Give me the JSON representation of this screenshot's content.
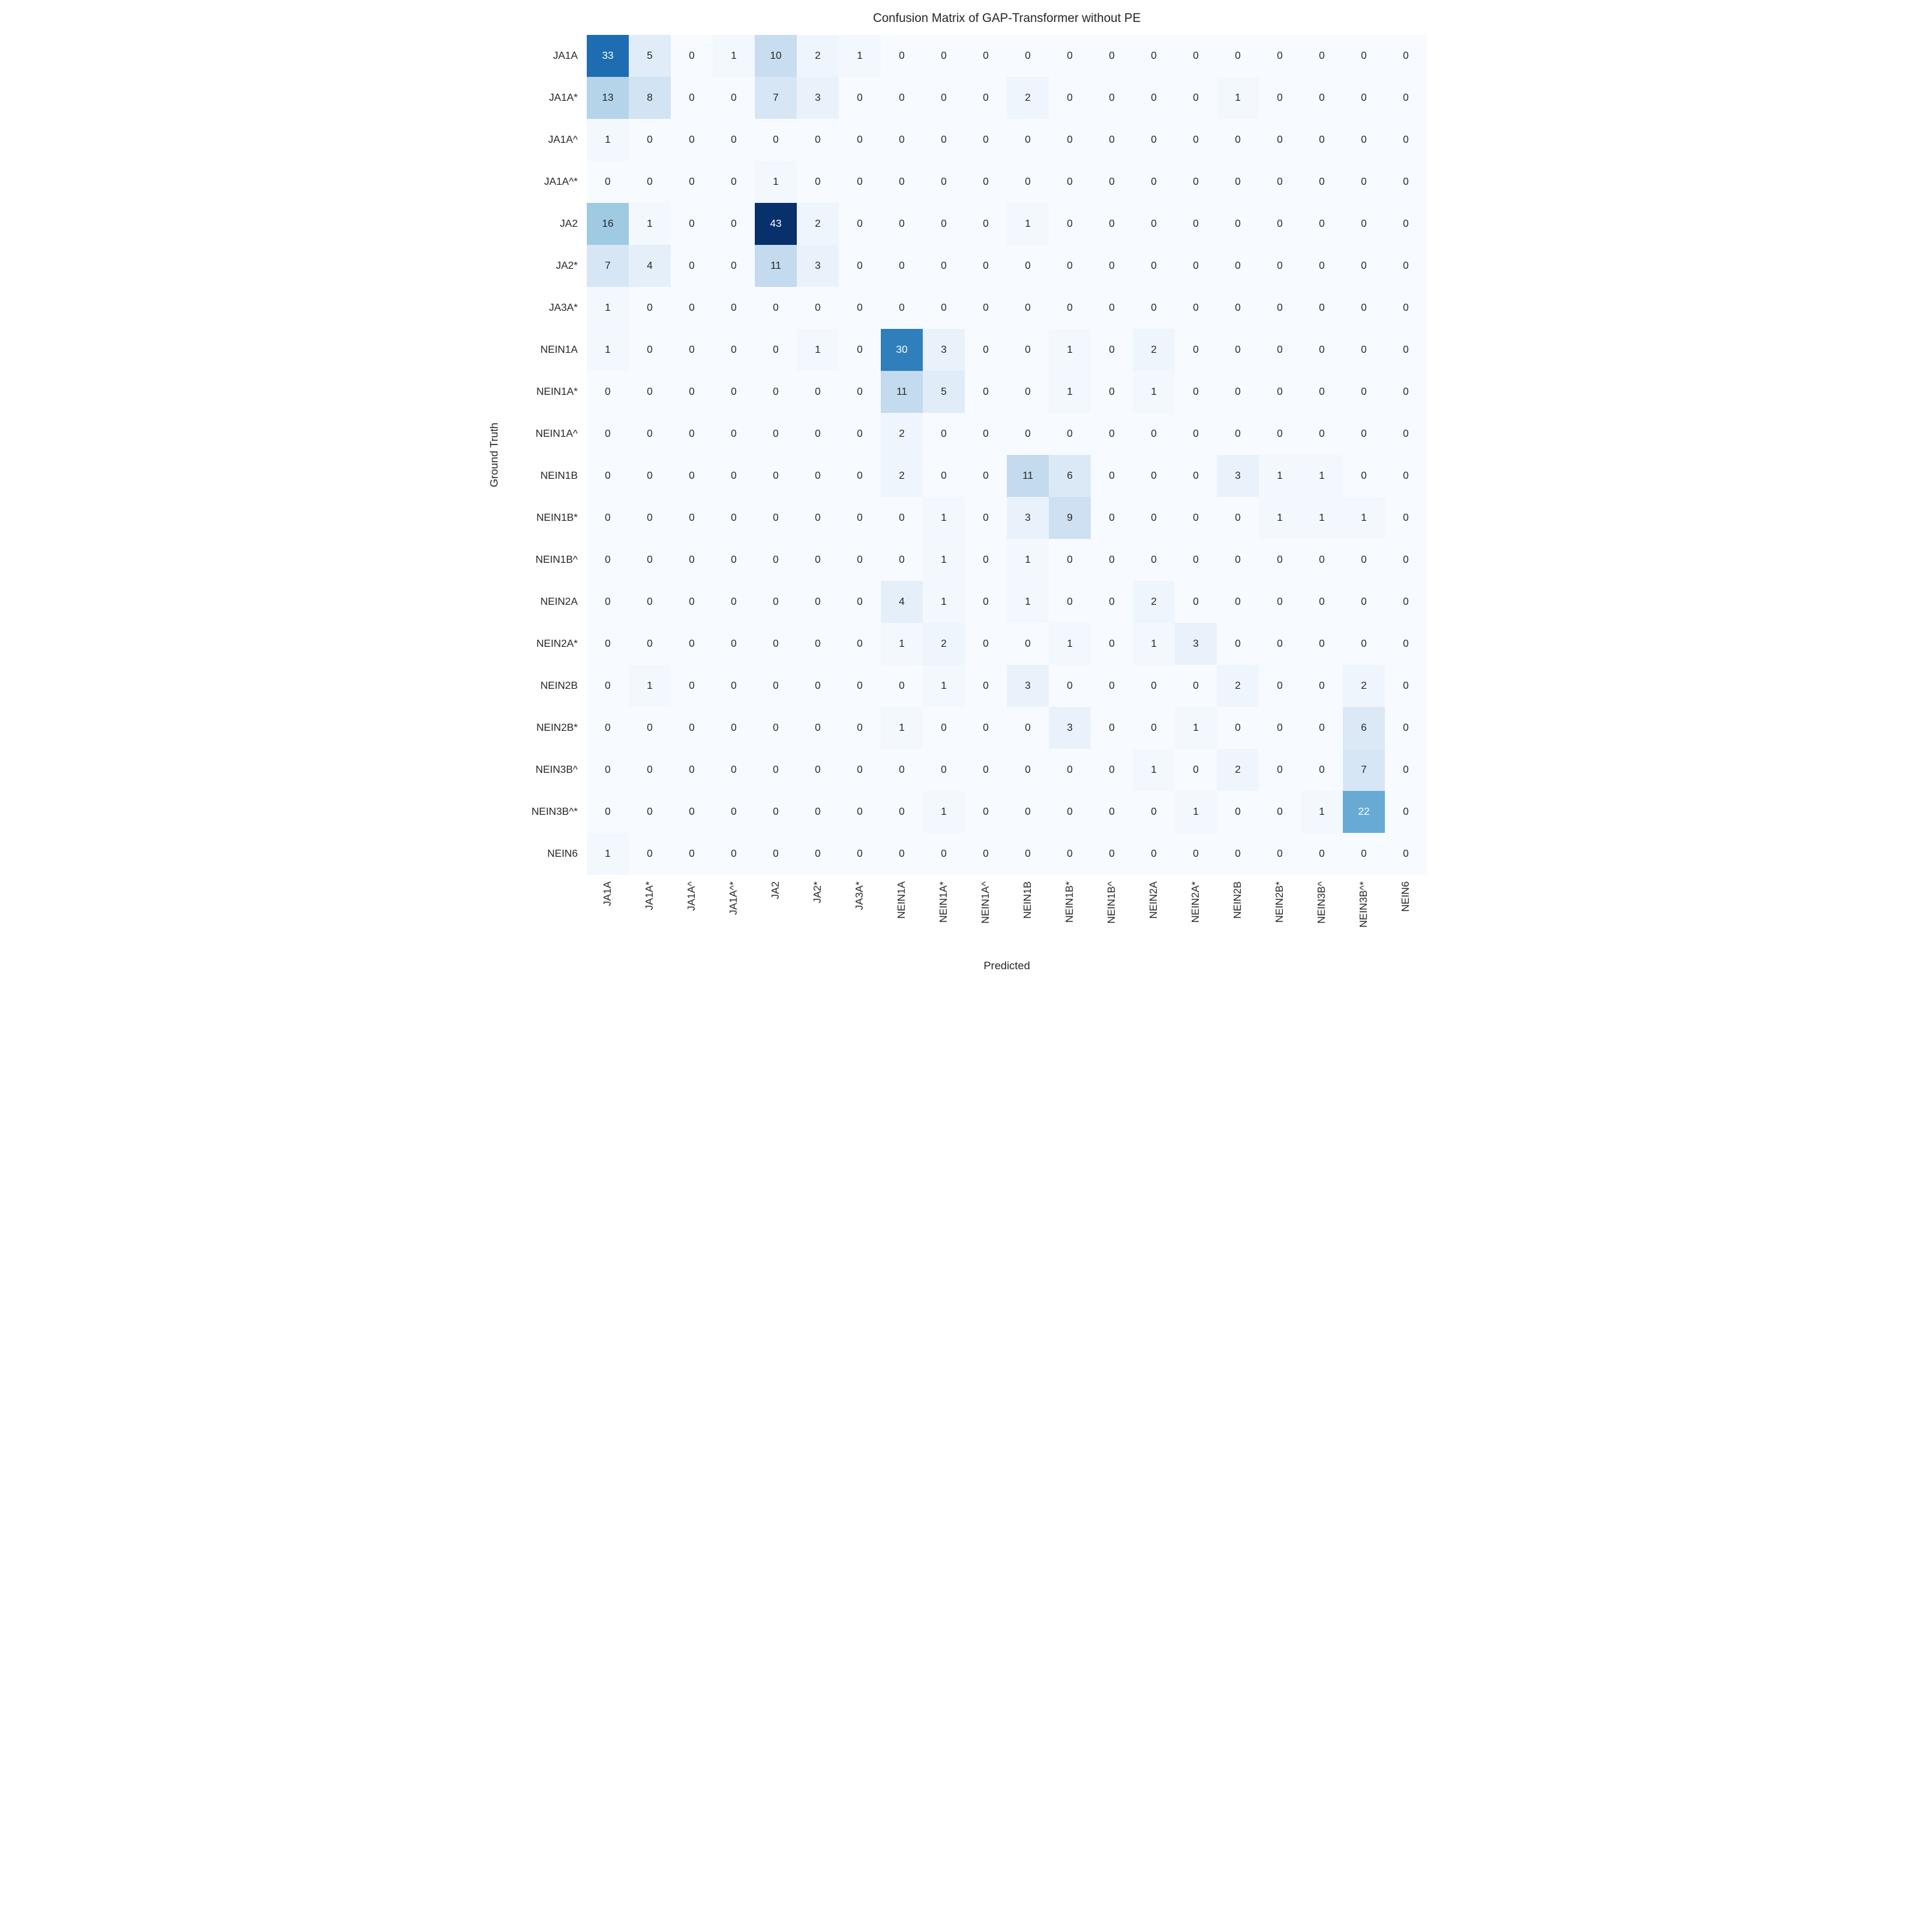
{
  "chart_data": {
    "type": "heatmap",
    "title": "Confusion Matrix of GAP-Transformer without PE",
    "xlabel": "Predicted",
    "ylabel": "Ground Truth",
    "labels": [
      "JA1A",
      "JA1A*",
      "JA1A^",
      "JA1A^*",
      "JA2",
      "JA2*",
      "JA3A*",
      "NEIN1A",
      "NEIN1A*",
      "NEIN1A^",
      "NEIN1B",
      "NEIN1B*",
      "NEIN1B^",
      "NEIN2A",
      "NEIN2A*",
      "NEIN2B",
      "NEIN2B*",
      "NEIN3B^",
      "NEIN3B^*",
      "NEIN6"
    ],
    "matrix": [
      [
        33,
        5,
        0,
        1,
        10,
        2,
        1,
        0,
        0,
        0,
        0,
        0,
        0,
        0,
        0,
        0,
        0,
        0,
        0,
        0
      ],
      [
        13,
        8,
        0,
        0,
        7,
        3,
        0,
        0,
        0,
        0,
        2,
        0,
        0,
        0,
        0,
        1,
        0,
        0,
        0,
        0
      ],
      [
        1,
        0,
        0,
        0,
        0,
        0,
        0,
        0,
        0,
        0,
        0,
        0,
        0,
        0,
        0,
        0,
        0,
        0,
        0,
        0
      ],
      [
        0,
        0,
        0,
        0,
        1,
        0,
        0,
        0,
        0,
        0,
        0,
        0,
        0,
        0,
        0,
        0,
        0,
        0,
        0,
        0
      ],
      [
        16,
        1,
        0,
        0,
        43,
        2,
        0,
        0,
        0,
        0,
        1,
        0,
        0,
        0,
        0,
        0,
        0,
        0,
        0,
        0
      ],
      [
        7,
        4,
        0,
        0,
        11,
        3,
        0,
        0,
        0,
        0,
        0,
        0,
        0,
        0,
        0,
        0,
        0,
        0,
        0,
        0
      ],
      [
        1,
        0,
        0,
        0,
        0,
        0,
        0,
        0,
        0,
        0,
        0,
        0,
        0,
        0,
        0,
        0,
        0,
        0,
        0,
        0
      ],
      [
        1,
        0,
        0,
        0,
        0,
        1,
        0,
        30,
        3,
        0,
        0,
        1,
        0,
        2,
        0,
        0,
        0,
        0,
        0,
        0
      ],
      [
        0,
        0,
        0,
        0,
        0,
        0,
        0,
        11,
        5,
        0,
        0,
        1,
        0,
        1,
        0,
        0,
        0,
        0,
        0,
        0
      ],
      [
        0,
        0,
        0,
        0,
        0,
        0,
        0,
        2,
        0,
        0,
        0,
        0,
        0,
        0,
        0,
        0,
        0,
        0,
        0,
        0
      ],
      [
        0,
        0,
        0,
        0,
        0,
        0,
        0,
        2,
        0,
        0,
        11,
        6,
        0,
        0,
        0,
        3,
        1,
        1,
        0,
        0
      ],
      [
        0,
        0,
        0,
        0,
        0,
        0,
        0,
        0,
        1,
        0,
        3,
        9,
        0,
        0,
        0,
        0,
        1,
        1,
        1,
        0
      ],
      [
        0,
        0,
        0,
        0,
        0,
        0,
        0,
        0,
        1,
        0,
        1,
        0,
        0,
        0,
        0,
        0,
        0,
        0,
        0,
        0
      ],
      [
        0,
        0,
        0,
        0,
        0,
        0,
        0,
        4,
        1,
        0,
        1,
        0,
        0,
        2,
        0,
        0,
        0,
        0,
        0,
        0
      ],
      [
        0,
        0,
        0,
        0,
        0,
        0,
        0,
        1,
        2,
        0,
        0,
        1,
        0,
        1,
        3,
        0,
        0,
        0,
        0,
        0
      ],
      [
        0,
        1,
        0,
        0,
        0,
        0,
        0,
        0,
        1,
        0,
        3,
        0,
        0,
        0,
        0,
        2,
        0,
        0,
        2,
        0
      ],
      [
        0,
        0,
        0,
        0,
        0,
        0,
        0,
        1,
        0,
        0,
        0,
        3,
        0,
        0,
        1,
        0,
        0,
        0,
        6,
        0
      ],
      [
        0,
        0,
        0,
        0,
        0,
        0,
        0,
        0,
        0,
        0,
        0,
        0,
        0,
        1,
        0,
        2,
        0,
        0,
        7,
        0
      ],
      [
        0,
        0,
        0,
        0,
        0,
        0,
        0,
        0,
        1,
        0,
        0,
        0,
        0,
        0,
        1,
        0,
        0,
        1,
        22,
        0
      ],
      [
        1,
        0,
        0,
        0,
        0,
        0,
        0,
        0,
        0,
        0,
        0,
        0,
        0,
        0,
        0,
        0,
        0,
        0,
        0,
        0
      ]
    ],
    "vmin": 0,
    "vmax": 43,
    "colormap": "Blues",
    "colormap_anchors": [
      "#f7fbff",
      "#deebf7",
      "#c6dbef",
      "#9ecae1",
      "#6baed6",
      "#4292c6",
      "#2171b5",
      "#08519c",
      "#08306b"
    ],
    "annotation_color_dark": "#262626",
    "annotation_color_light": "#ffffff",
    "legend_position": "none",
    "grid": false
  }
}
